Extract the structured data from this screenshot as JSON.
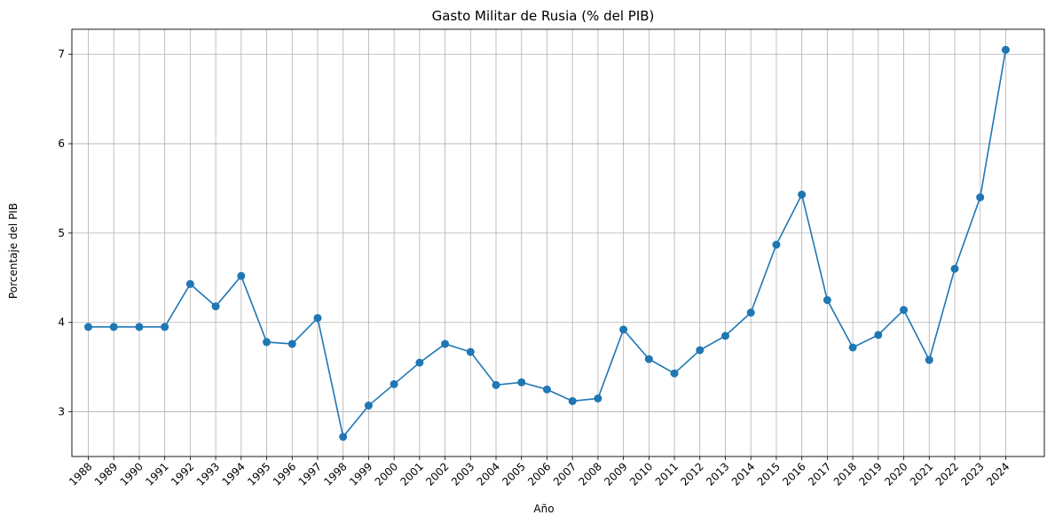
{
  "chart_data": {
    "type": "line",
    "title": "Gasto Militar de Rusia (% del PIB)",
    "xlabel": "Año",
    "ylabel": "Porcentaje del PIB",
    "x": [
      "1988",
      "1989",
      "1990",
      "1991",
      "1992",
      "1993",
      "1994",
      "1995",
      "1996",
      "1997",
      "1998",
      "1999",
      "2000",
      "2001",
      "2002",
      "2003",
      "2004",
      "2005",
      "2006",
      "2007",
      "2008",
      "2009",
      "2010",
      "2011",
      "2012",
      "2013",
      "2014",
      "2015",
      "2016",
      "2017",
      "2018",
      "2019",
      "2020",
      "2021",
      "2022",
      "2023",
      "2024"
    ],
    "series": [
      {
        "values": [
          3.95,
          3.95,
          3.95,
          3.95,
          4.43,
          4.18,
          4.52,
          3.78,
          3.76,
          4.05,
          2.72,
          3.07,
          3.31,
          3.55,
          3.76,
          3.67,
          3.3,
          3.33,
          3.25,
          3.12,
          3.15,
          3.92,
          3.59,
          3.43,
          3.69,
          3.85,
          4.11,
          4.87,
          5.43,
          4.25,
          3.72,
          3.86,
          4.14,
          3.58,
          4.6,
          5.4,
          7.05
        ],
        "color": "#1f77b4"
      }
    ],
    "yticks": [
      3,
      4,
      5,
      6,
      7
    ],
    "ylim": [
      2.5,
      7.28
    ],
    "grid": true
  }
}
